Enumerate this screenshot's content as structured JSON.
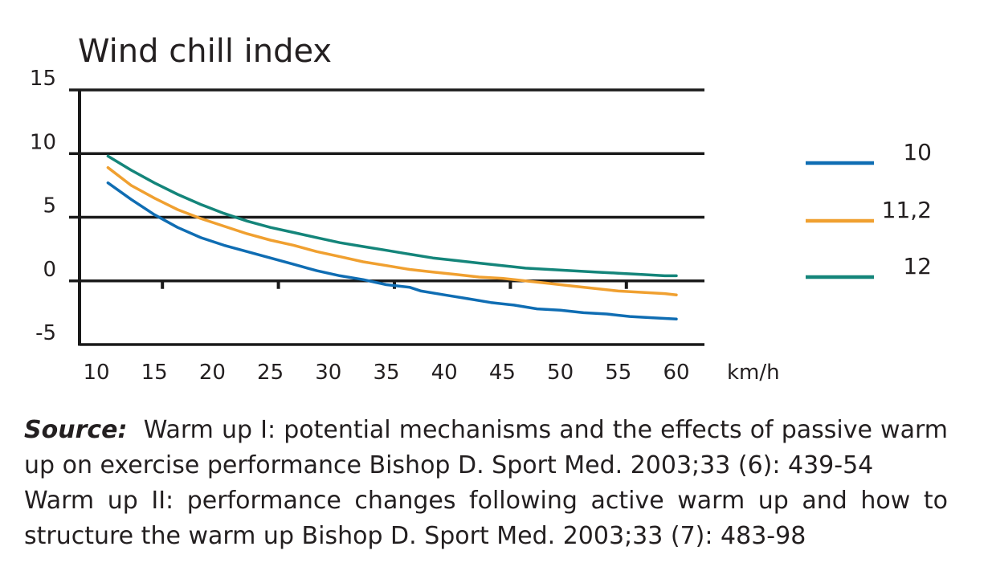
{
  "chart_data": {
    "type": "line",
    "title": "Wind chill index",
    "xlabel": "km/h",
    "ylabel": "",
    "xlim": [
      10,
      60
    ],
    "ylim": [
      -5,
      15
    ],
    "x_ticks": [
      10,
      15,
      20,
      25,
      30,
      35,
      40,
      45,
      50,
      55,
      60
    ],
    "y_ticks": [
      15,
      10,
      5,
      0,
      -5
    ],
    "grid": "horizontal",
    "legend_position": "right",
    "series": [
      {
        "name": "10",
        "color": "#0f6db3",
        "x": [
          11,
          13,
          15,
          17,
          19,
          21,
          23,
          25,
          27,
          29,
          31,
          33,
          35,
          37,
          38,
          40,
          42,
          44,
          46,
          48,
          50,
          52,
          54,
          56,
          58,
          60
        ],
        "y": [
          7.7,
          6.4,
          5.2,
          4.2,
          3.4,
          2.8,
          2.3,
          1.8,
          1.3,
          0.8,
          0.4,
          0.1,
          -0.3,
          -0.5,
          -0.8,
          -1.1,
          -1.4,
          -1.7,
          -1.9,
          -2.2,
          -2.3,
          -2.5,
          -2.6,
          -2.8,
          -2.9,
          -3.0
        ]
      },
      {
        "name": "11,2",
        "color": "#f0a030",
        "x": [
          11,
          13,
          15,
          17,
          19,
          21,
          23,
          25,
          27,
          29,
          31,
          33,
          35,
          37,
          39,
          41,
          43,
          45,
          47,
          49,
          51,
          53,
          55,
          57,
          59,
          60
        ],
        "y": [
          8.9,
          7.5,
          6.5,
          5.6,
          4.9,
          4.3,
          3.7,
          3.2,
          2.8,
          2.3,
          1.9,
          1.5,
          1.2,
          0.9,
          0.7,
          0.5,
          0.3,
          0.2,
          0.0,
          -0.2,
          -0.4,
          -0.6,
          -0.8,
          -0.9,
          -1.0,
          -1.1
        ]
      },
      {
        "name": "12",
        "color": "#14857a",
        "x": [
          11,
          13,
          15,
          17,
          19,
          21,
          23,
          25,
          27,
          29,
          31,
          33,
          35,
          37,
          39,
          41,
          43,
          45,
          47,
          49,
          51,
          53,
          55,
          57,
          59,
          60
        ],
        "y": [
          9.8,
          8.7,
          7.7,
          6.8,
          6.0,
          5.3,
          4.7,
          4.2,
          3.8,
          3.4,
          3.0,
          2.7,
          2.4,
          2.1,
          1.8,
          1.6,
          1.4,
          1.2,
          1.0,
          0.9,
          0.8,
          0.7,
          0.6,
          0.5,
          0.4,
          0.4
        ]
      }
    ]
  },
  "source": {
    "label": "Source:",
    "line1": "Warm up I: potential mechanisms and the effects of passive warm up on exercise performance Bishop D. Sport Med. 2003;33 (6): 439-54",
    "line2": "Warm up II: performance changes following active warm up and how to structure the warm up Bishop D. Sport Med. 2003;33 (7): 483-98"
  }
}
